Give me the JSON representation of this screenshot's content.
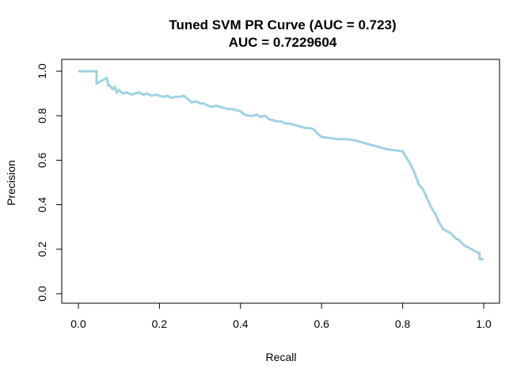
{
  "chart_data": {
    "type": "line",
    "title": "Tuned SVM PR Curve (AUC = 0.723)",
    "subtitle": "AUC = 0.7229604",
    "xlabel": "Recall",
    "ylabel": "Precision",
    "xlim": [
      0,
      1
    ],
    "ylim": [
      0,
      1
    ],
    "xticks": [
      "0.0",
      "0.2",
      "0.4",
      "0.6",
      "0.8",
      "1.0"
    ],
    "yticks": [
      "0.0",
      "0.2",
      "0.4",
      "0.6",
      "0.8",
      "1.0"
    ],
    "grid": false,
    "legend": "none",
    "line_color": "#9fd2e3",
    "series": [
      {
        "x": [
          0.0,
          0.045,
          0.045,
          0.06,
          0.07,
          0.075,
          0.075,
          0.085,
          0.09,
          0.095,
          0.1,
          0.11,
          0.12,
          0.13,
          0.14,
          0.15,
          0.16,
          0.17,
          0.18,
          0.19,
          0.2,
          0.21,
          0.22,
          0.23,
          0.24,
          0.25,
          0.26,
          0.27,
          0.28,
          0.29,
          0.3,
          0.31,
          0.32,
          0.33,
          0.34,
          0.35,
          0.36,
          0.37,
          0.38,
          0.39,
          0.4,
          0.41,
          0.42,
          0.43,
          0.44,
          0.45,
          0.46,
          0.47,
          0.48,
          0.49,
          0.5,
          0.51,
          0.52,
          0.53,
          0.54,
          0.55,
          0.56,
          0.57,
          0.58,
          0.59,
          0.6,
          0.62,
          0.64,
          0.66,
          0.68,
          0.7,
          0.72,
          0.74,
          0.76,
          0.78,
          0.8,
          0.81,
          0.82,
          0.83,
          0.84,
          0.85,
          0.86,
          0.87,
          0.88,
          0.89,
          0.9,
          0.91,
          0.92,
          0.93,
          0.94,
          0.95,
          0.96,
          0.97,
          0.98,
          0.99,
          0.99,
          1.0
        ],
        "y": [
          1.0,
          1.0,
          0.945,
          0.96,
          0.97,
          0.93,
          0.94,
          0.92,
          0.93,
          0.905,
          0.915,
          0.9,
          0.905,
          0.895,
          0.9,
          0.905,
          0.895,
          0.9,
          0.89,
          0.895,
          0.89,
          0.885,
          0.89,
          0.88,
          0.885,
          0.885,
          0.89,
          0.875,
          0.86,
          0.865,
          0.855,
          0.855,
          0.845,
          0.84,
          0.845,
          0.84,
          0.835,
          0.83,
          0.83,
          0.825,
          0.82,
          0.805,
          0.8,
          0.8,
          0.805,
          0.795,
          0.8,
          0.785,
          0.78,
          0.775,
          0.775,
          0.765,
          0.765,
          0.76,
          0.755,
          0.75,
          0.745,
          0.745,
          0.74,
          0.72,
          0.705,
          0.7,
          0.695,
          0.695,
          0.69,
          0.68,
          0.67,
          0.66,
          0.65,
          0.645,
          0.64,
          0.61,
          0.58,
          0.54,
          0.49,
          0.47,
          0.43,
          0.39,
          0.36,
          0.32,
          0.29,
          0.28,
          0.27,
          0.25,
          0.24,
          0.22,
          0.21,
          0.2,
          0.19,
          0.18,
          0.155,
          0.155
        ]
      }
    ]
  }
}
